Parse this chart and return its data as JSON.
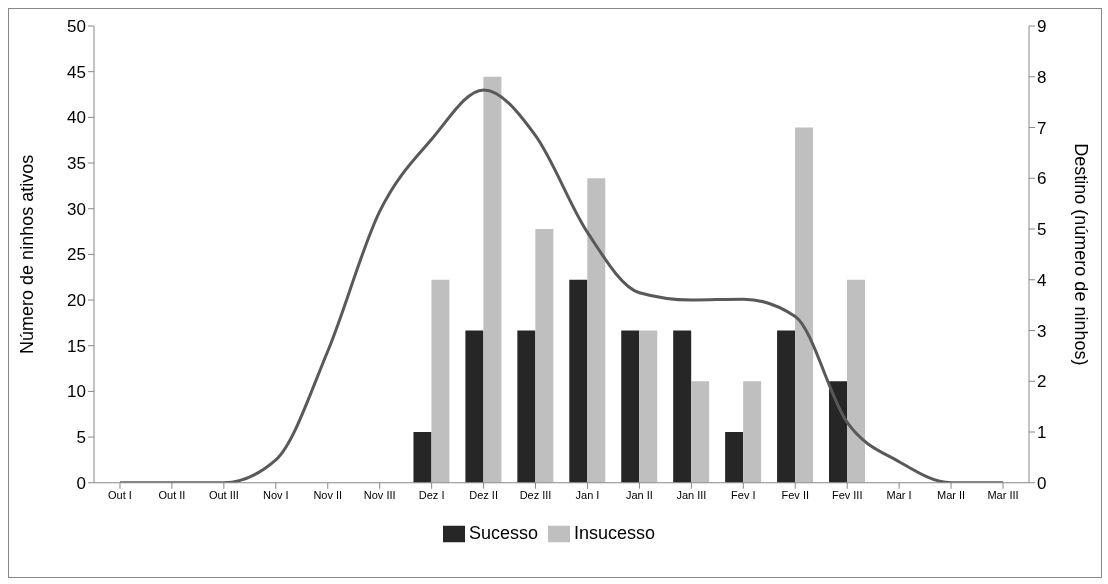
{
  "chart_data": {
    "type": "bar",
    "ylabel": "Número de ninhos ativos",
    "y2label": "Destino (número de ninhos)",
    "categories": [
      "Out I",
      "Out II",
      "Out III",
      "Nov I",
      "Nov II",
      "Nov III",
      "Dez I",
      "Dez II",
      "Dez III",
      "Jan I",
      "Jan II",
      "Jan III",
      "Fev I",
      "Fev II",
      "Fev III",
      "Mar I",
      "Mar II",
      "Mar III"
    ],
    "series": [
      {
        "name": "Sucesso",
        "axis": "y2",
        "color": "#262626",
        "values": [
          null,
          null,
          null,
          null,
          null,
          null,
          1,
          3,
          3,
          4,
          3,
          3,
          1,
          3,
          2,
          null,
          null,
          null
        ]
      },
      {
        "name": "Insucesso",
        "axis": "y2",
        "color": "#bfbfbf",
        "values": [
          null,
          null,
          null,
          null,
          null,
          null,
          4,
          8,
          5,
          6,
          3,
          2,
          2,
          7,
          4,
          null,
          null,
          null
        ]
      },
      {
        "type": "line",
        "color": "#595959",
        "values": [
          0,
          0,
          0,
          2.5,
          14.4,
          29.7,
          37.6,
          43,
          38,
          27.4,
          20.8,
          20,
          20.1,
          18.2,
          6.6,
          2.3,
          0,
          0
        ]
      }
    ],
    "ylim": [
      0,
      50
    ],
    "yticks": [
      0,
      5,
      10,
      15,
      20,
      25,
      30,
      35,
      40,
      45,
      50
    ],
    "y2lim": [
      0,
      9
    ],
    "y2ticks": [
      0,
      1,
      2,
      3,
      4,
      5,
      6,
      7,
      8,
      9
    ],
    "legend": "bottom",
    "marker": "none",
    "line_style": "solid"
  }
}
